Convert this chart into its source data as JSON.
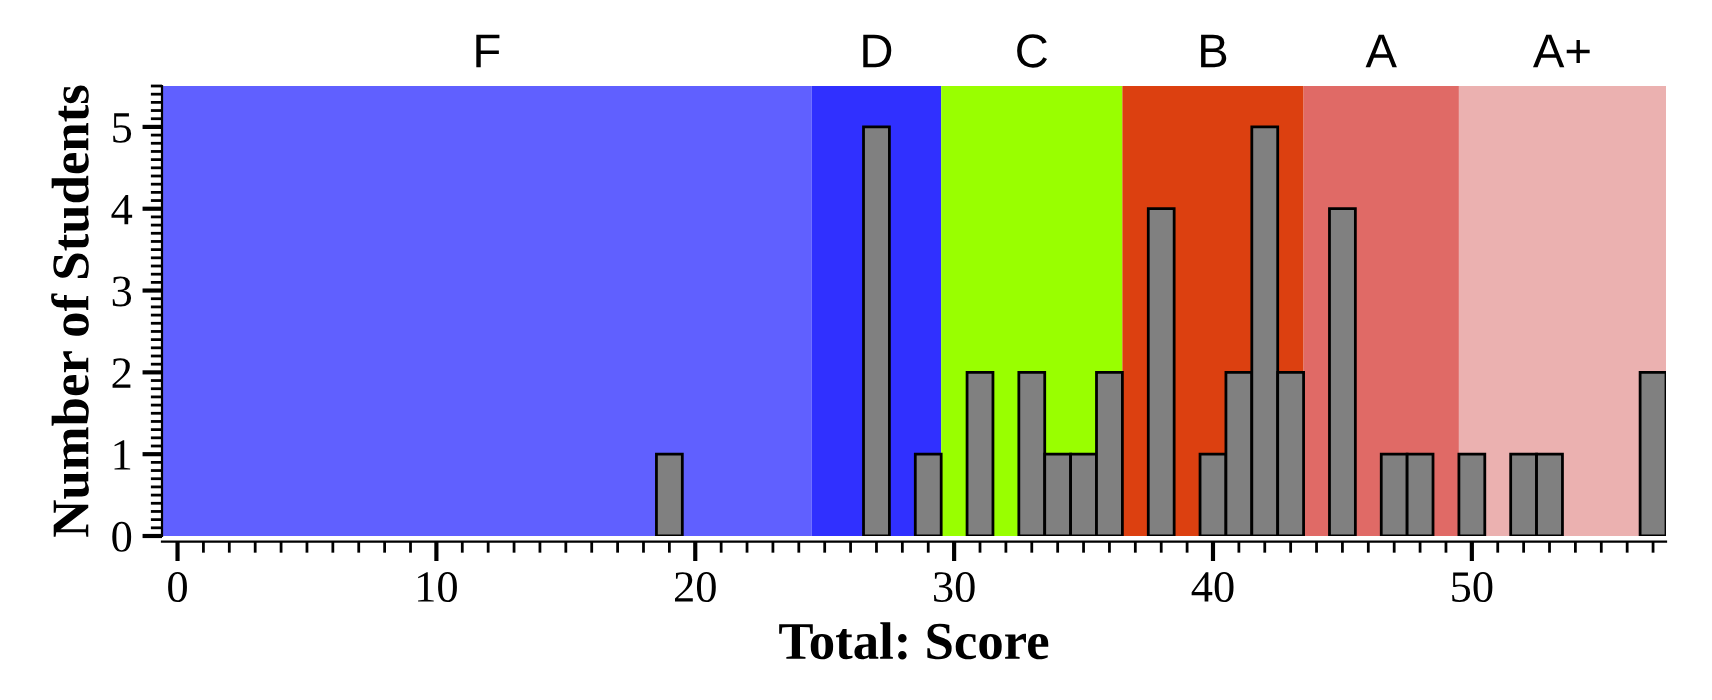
{
  "chart_data": {
    "type": "histogram",
    "xlabel": "Total: Score",
    "ylabel": "Number of Students",
    "bins": [
      18.5,
      19.5,
      20.5,
      21.5,
      22.5,
      23.5,
      24.5,
      25.5,
      26.5,
      27.5,
      28.5,
      29.5,
      30.5,
      31.5,
      32.5,
      33.5,
      34.5,
      35.5,
      36.5,
      37.5,
      38.5,
      39.5,
      40.5,
      41.5,
      42.5,
      43.5,
      44.5,
      45.5,
      46.5,
      47.5,
      48.5,
      49.5,
      50.5,
      51.5,
      52.5,
      53.5,
      54.5,
      55.5,
      56.5,
      57.5
    ],
    "values": [
      1,
      0,
      0,
      0,
      0,
      0,
      0,
      0,
      5,
      0,
      1,
      0,
      2,
      0,
      2,
      1,
      1,
      2,
      0,
      4,
      0,
      1,
      2,
      5,
      2,
      0,
      4,
      0,
      1,
      1,
      0,
      1,
      0,
      1,
      1,
      0,
      0,
      0,
      2
    ],
    "color": "#808080",
    "xlim": [
      -0.6,
      57.5
    ],
    "ylim": [
      0,
      5.5
    ],
    "xticks": [
      0,
      10,
      20,
      30,
      40,
      50
    ],
    "yticks": [
      0,
      1,
      2,
      3,
      4,
      5
    ],
    "bands": [
      {
        "axis": "x",
        "from": -0.6,
        "to": 24.5,
        "label": "F",
        "color": "#6060ff"
      },
      {
        "axis": "x",
        "from": 24.5,
        "to": 29.5,
        "label": "D",
        "color": "#3030ff"
      },
      {
        "axis": "x",
        "from": 29.5,
        "to": 36.5,
        "label": "C",
        "color": "#99ff00"
      },
      {
        "axis": "x",
        "from": 36.5,
        "to": 43.5,
        "label": "B",
        "color": "#dc4010"
      },
      {
        "axis": "x",
        "from": 43.5,
        "to": 49.5,
        "label": "A",
        "color": "#e06a66"
      },
      {
        "axis": "x",
        "from": 49.5,
        "to": 57.5,
        "label": "A+",
        "color": "#ebb1b0"
      }
    ],
    "grid": false
  }
}
